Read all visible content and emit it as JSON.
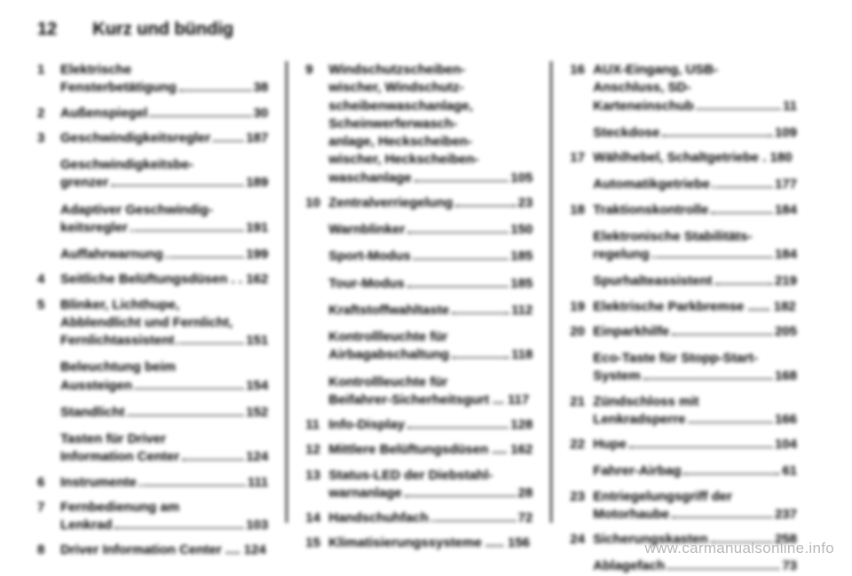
{
  "header": {
    "page_number": "12",
    "chapter_title": "Kurz und bündig"
  },
  "watermark": "www.carmanualsonline.info",
  "columns": [
    [
      {
        "n": "1",
        "lines": [
          "Elektrische"
        ],
        "last": "Fensterbetätigung",
        "pg": "38"
      },
      {
        "n": "2",
        "lines": [],
        "last": "Außenspiegel",
        "pg": "30"
      },
      {
        "n": "3",
        "lines": [],
        "last": "Geschwindigkeitsregler",
        "pg": "187",
        "subs": [
          {
            "lines": [
              "Geschwindigkeitsbe-"
            ],
            "last": "grenzer",
            "pg": "189"
          },
          {
            "lines": [
              "Adaptiver Geschwindig-"
            ],
            "last": "keitsregler",
            "pg": "191"
          },
          {
            "lines": [],
            "last": "Auffahrwarnung",
            "pg": "199"
          }
        ]
      },
      {
        "n": "4",
        "lines": [],
        "last": "Seitliche Belüftungsdüsen . .",
        "pg": "162",
        "nodots": true
      },
      {
        "n": "5",
        "lines": [
          "Blinker, Lichthupe,",
          "Abblendlicht und Fernlicht,"
        ],
        "last": "Fernlichtassistent",
        "pg": "151",
        "subs": [
          {
            "lines": [
              "Beleuchtung beim"
            ],
            "last": "Aussteigen",
            "pg": "154"
          },
          {
            "lines": [],
            "last": "Standlicht",
            "pg": "152"
          },
          {
            "lines": [
              "Tasten für Driver"
            ],
            "last": "Information Center",
            "pg": "124"
          }
        ]
      },
      {
        "n": "6",
        "lines": [],
        "last": "Instrumente",
        "pg": "111"
      },
      {
        "n": "7",
        "lines": [
          "Fernbedienung am"
        ],
        "last": "Lenkrad",
        "pg": "103"
      },
      {
        "n": "8",
        "lines": [],
        "last": "Driver Information Center ....",
        "pg": "124",
        "nodots": true
      }
    ],
    [
      {
        "n": "9",
        "lines": [
          "Windschutzscheiben-",
          "wischer, Windschutz-",
          "scheibenwaschanlage,",
          "Scheinwerferwasch-",
          "anlage, Heckscheiben-",
          "wischer, Heckscheiben-"
        ],
        "last": "waschanlage",
        "pg": "105"
      },
      {
        "n": "10",
        "lines": [],
        "last": "Zentralverriegelung",
        "pg": "23",
        "subs": [
          {
            "lines": [],
            "last": "Warnblinker",
            "pg": "150"
          },
          {
            "lines": [],
            "last": "Sport-Modus",
            "pg": "185"
          },
          {
            "lines": [],
            "last": "Tour-Modus",
            "pg": "185"
          },
          {
            "lines": [],
            "last": "Kraftstoffwahltaste",
            "pg": "112"
          },
          {
            "lines": [
              "Kontrollleuchte für"
            ],
            "last": "Airbagabschaltung",
            "pg": "118"
          },
          {
            "lines": [
              "Kontrollleuchte für"
            ],
            "last": "Beifahrer-Sicherheitsgurt ...",
            "pg": "117",
            "nodots": true
          }
        ]
      },
      {
        "n": "11",
        "lines": [],
        "last": "Info-Display",
        "pg": "128"
      },
      {
        "n": "12",
        "lines": [],
        "last": "Mittlere Belüftungsdüsen ....",
        "pg": "162",
        "nodots": true
      },
      {
        "n": "13",
        "lines": [
          "Status-LED der Diebstahl-"
        ],
        "last": "warnanlage",
        "pg": "28"
      },
      {
        "n": "14",
        "lines": [],
        "last": "Handschuhfach",
        "pg": "72"
      },
      {
        "n": "15",
        "lines": [],
        "last": "Klimatisierungssysteme .....",
        "pg": "156",
        "nodots": true
      }
    ],
    [
      {
        "n": "16",
        "lines": [
          "AUX-Eingang, USB-",
          "Anschluss, SD-"
        ],
        "last": "Karteneinschub",
        "pg": "11",
        "subs": [
          {
            "lines": [],
            "last": "Steckdose",
            "pg": "109"
          }
        ]
      },
      {
        "n": "17",
        "lines": [],
        "last": "Wählhebel, Schaltgetriebe .",
        "pg": "180",
        "nodots": true,
        "subs": [
          {
            "lines": [],
            "last": "Automatikgetriebe",
            "pg": "177"
          }
        ]
      },
      {
        "n": "18",
        "lines": [],
        "last": "Traktionskontrolle",
        "pg": "184",
        "subs": [
          {
            "lines": [
              "Elektronische Stabilitäts-"
            ],
            "last": "regelung",
            "pg": "184"
          },
          {
            "lines": [],
            "last": "Spurhalteassistent",
            "pg": "219"
          }
        ]
      },
      {
        "n": "19",
        "lines": [],
        "last": "Elektrische Parkbremse ......",
        "pg": "182",
        "nodots": true
      },
      {
        "n": "20",
        "lines": [],
        "last": "Einparkhilfe",
        "pg": "205",
        "subs": [
          {
            "lines": [
              "Eco-Taste für Stopp-Start-"
            ],
            "last": "System",
            "pg": "168"
          }
        ]
      },
      {
        "n": "21",
        "lines": [
          "Zündschloss mit"
        ],
        "last": "Lenkradsperre",
        "pg": "166"
      },
      {
        "n": "22",
        "lines": [],
        "last": "Hupe",
        "pg": "104",
        "subs": [
          {
            "lines": [],
            "last": "Fahrer-Airbag",
            "pg": "61"
          }
        ]
      },
      {
        "n": "23",
        "lines": [
          "Entriegelungsgriff der"
        ],
        "last": "Motorhaube",
        "pg": "237"
      },
      {
        "n": "24",
        "lines": [],
        "last": "Sicherungskasten",
        "pg": "258",
        "subs": [
          {
            "lines": [],
            "last": "Ablagefach",
            "pg": "73"
          }
        ]
      }
    ]
  ]
}
